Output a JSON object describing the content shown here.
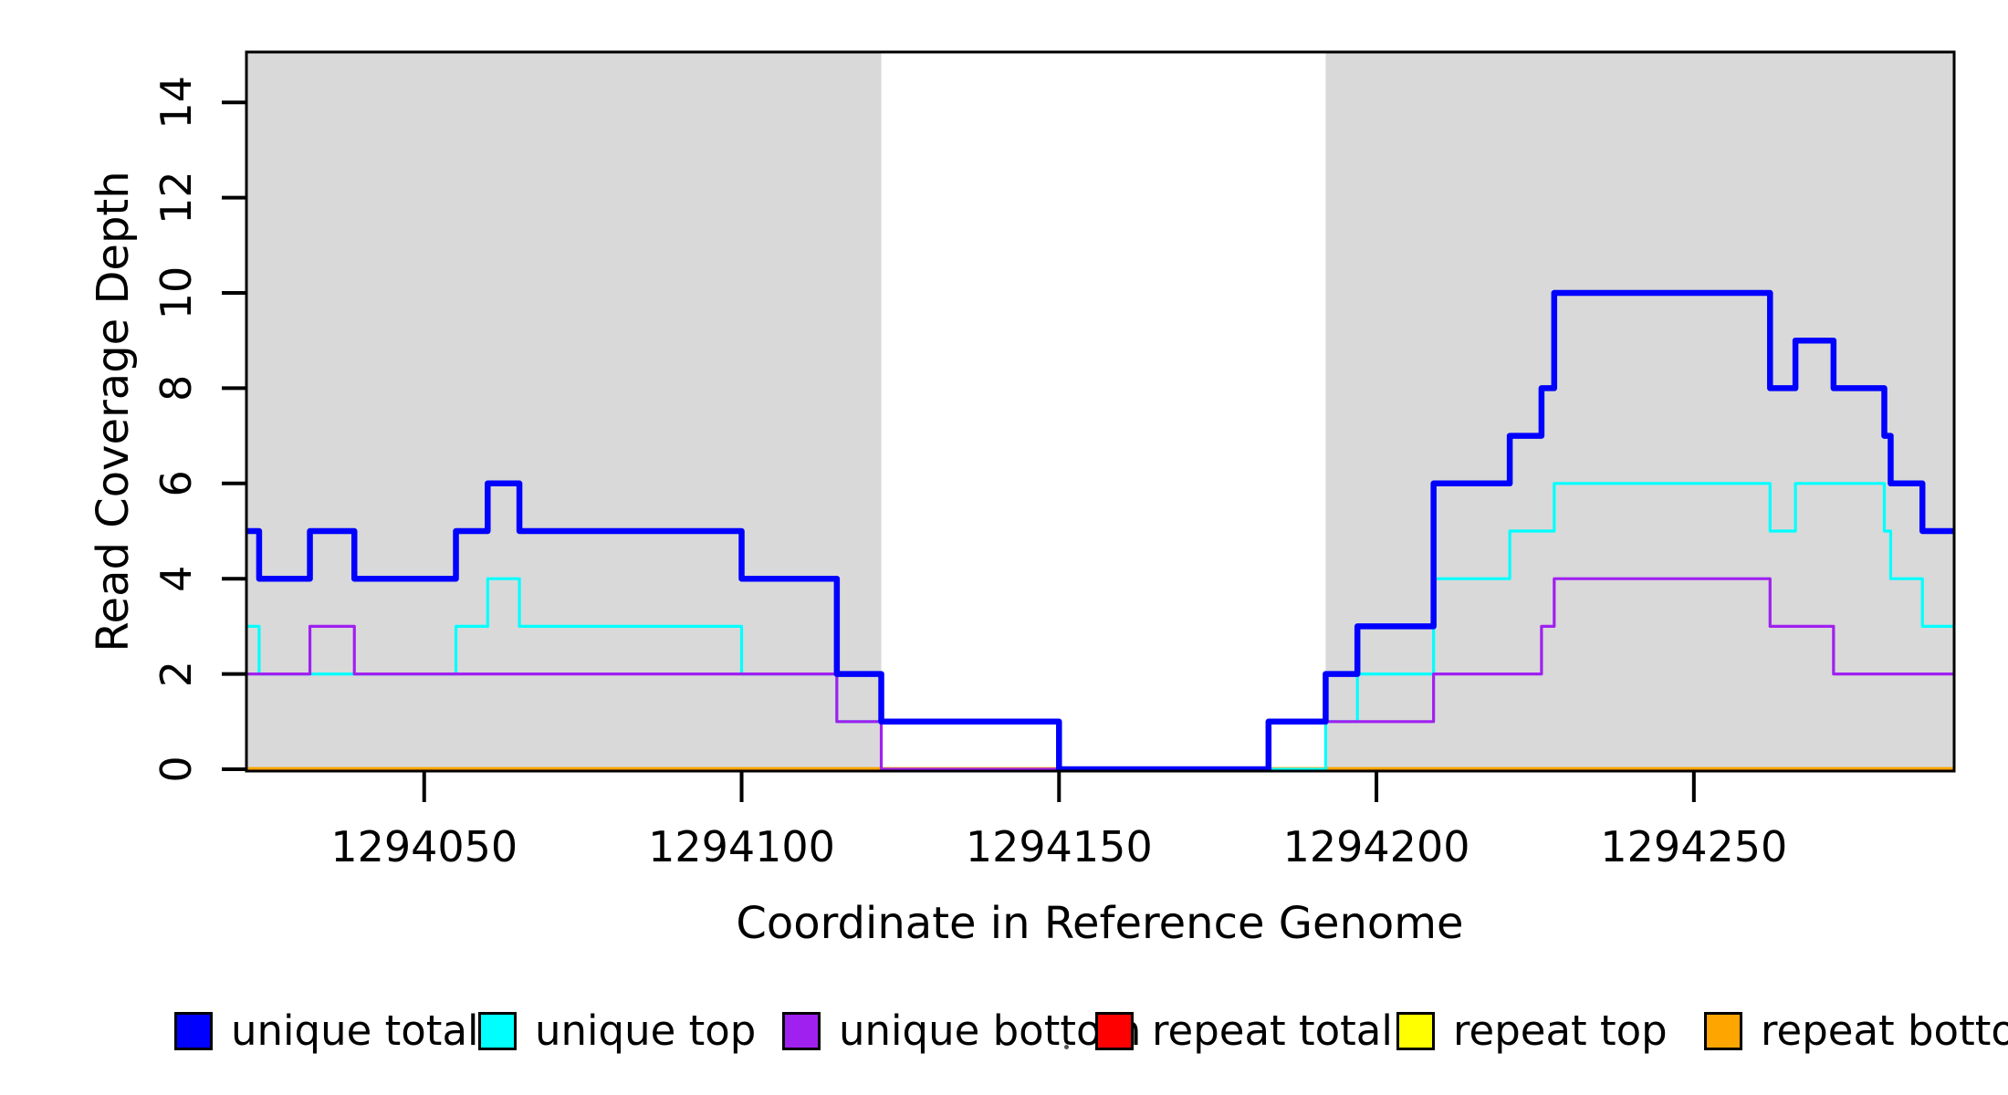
{
  "figure": {
    "background": "#ffffff",
    "plot_bg_left_right": "#d9d9d9",
    "axis_color": "#000000"
  },
  "chart_data": {
    "type": "line",
    "subtype": "step-coverage",
    "title": "",
    "xlabel": "Coordinate in Reference Genome",
    "ylabel": "Read Coverage Depth",
    "xlim": [
      1294022,
      1294291
    ],
    "ylim": [
      0,
      15.05
    ],
    "grid": false,
    "legend_position": "bottom",
    "x_ticks": [
      {
        "value": 1294050,
        "label": "1294050"
      },
      {
        "value": 1294100,
        "label": "1294100"
      },
      {
        "value": 1294150,
        "label": "1294150"
      },
      {
        "value": 1294200,
        "label": "1294200"
      },
      {
        "value": 1294250,
        "label": "1294250"
      }
    ],
    "y_ticks": [
      {
        "value": 0,
        "label": "0"
      },
      {
        "value": 2,
        "label": "2"
      },
      {
        "value": 4,
        "label": "4"
      },
      {
        "value": 6,
        "label": "6"
      },
      {
        "value": 8,
        "label": "8"
      },
      {
        "value": 10,
        "label": "10"
      },
      {
        "value": 12,
        "label": "12"
      },
      {
        "value": 14,
        "label": "14"
      }
    ],
    "shaded_regions": [
      {
        "x_start": 1294022,
        "x_end": 1294122,
        "color": "#d9d9d9"
      },
      {
        "x_start": 1294192,
        "x_end": 1294291,
        "color": "#d9d9d9"
      }
    ],
    "draw_order": [
      "repeat total",
      "repeat top",
      "repeat bottom",
      "unique top",
      "unique bottom",
      "unique total"
    ],
    "series": [
      {
        "name": "unique total",
        "color": "#0000ff",
        "line_width": 6.5,
        "steps": [
          [
            1294022,
            5
          ],
          [
            1294024,
            4
          ],
          [
            1294032,
            5
          ],
          [
            1294039,
            4
          ],
          [
            1294055,
            5
          ],
          [
            1294060,
            6
          ],
          [
            1294065,
            5
          ],
          [
            1294100,
            4
          ],
          [
            1294115,
            2
          ],
          [
            1294122,
            1
          ],
          [
            1294150,
            0
          ],
          [
            1294183,
            1
          ],
          [
            1294192,
            2
          ],
          [
            1294197,
            3
          ],
          [
            1294209,
            6
          ],
          [
            1294221,
            7
          ],
          [
            1294226,
            8
          ],
          [
            1294228,
            10
          ],
          [
            1294262,
            8
          ],
          [
            1294266,
            9
          ],
          [
            1294272,
            8
          ],
          [
            1294280,
            7
          ],
          [
            1294281,
            6
          ],
          [
            1294286,
            5
          ]
        ]
      },
      {
        "name": "unique top",
        "color": "#00ffff",
        "line_width": 3.2,
        "steps": [
          [
            1294022,
            3
          ],
          [
            1294024,
            2
          ],
          [
            1294055,
            3
          ],
          [
            1294060,
            4
          ],
          [
            1294065,
            3
          ],
          [
            1294100,
            2
          ],
          [
            1294115,
            1
          ],
          [
            1294150,
            0
          ],
          [
            1294192,
            1
          ],
          [
            1294197,
            2
          ],
          [
            1294209,
            4
          ],
          [
            1294221,
            5
          ],
          [
            1294228,
            6
          ],
          [
            1294262,
            5
          ],
          [
            1294266,
            6
          ],
          [
            1294280,
            5
          ],
          [
            1294281,
            4
          ],
          [
            1294286,
            3
          ]
        ]
      },
      {
        "name": "unique bottom",
        "color": "#a020f0",
        "line_width": 3.2,
        "steps": [
          [
            1294022,
            2
          ],
          [
            1294032,
            3
          ],
          [
            1294039,
            2
          ],
          [
            1294115,
            1
          ],
          [
            1294122,
            0
          ],
          [
            1294183,
            1
          ],
          [
            1294209,
            2
          ],
          [
            1294226,
            3
          ],
          [
            1294228,
            4
          ],
          [
            1294262,
            3
          ],
          [
            1294272,
            2
          ]
        ]
      },
      {
        "name": "repeat total",
        "color": "#ff0000",
        "line_width": 3.2,
        "steps": [
          [
            1294022,
            0
          ]
        ]
      },
      {
        "name": "repeat top",
        "color": "#ffff00",
        "line_width": 3.2,
        "steps": [
          [
            1294022,
            0
          ]
        ]
      },
      {
        "name": "repeat bottom",
        "color": "#ffa500",
        "line_width": 4.7,
        "steps": [
          [
            1294022,
            0
          ]
        ]
      }
    ]
  },
  "legend": {
    "entries": [
      {
        "label": "unique total",
        "color": "#0000ff"
      },
      {
        "label": "unique top",
        "color": "#00ffff"
      },
      {
        "label": "unique bottom",
        "color": "#a020f0"
      },
      {
        "label": "repeat total",
        "color": "#ff0000"
      },
      {
        "label": "repeat top",
        "color": "#ffff00"
      },
      {
        "label": "repeat bottom",
        "color": "#ffa500"
      }
    ]
  }
}
